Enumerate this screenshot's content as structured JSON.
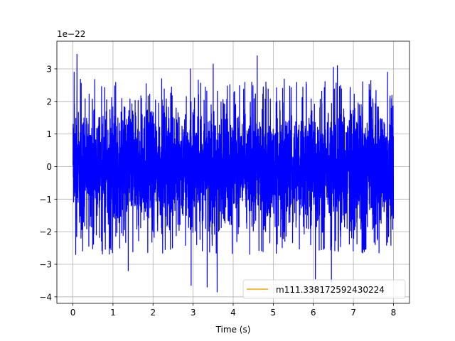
{
  "chart_data": {
    "type": "line",
    "title": "",
    "xlabel": "Time (s)",
    "ylabel": "",
    "y_offset_label": "1e−22",
    "xlim": [
      -0.4,
      8.4
    ],
    "ylim": [
      -4.2,
      3.85
    ],
    "x_ticks": [
      0,
      1,
      2,
      3,
      4,
      5,
      6,
      7,
      8
    ],
    "x_tick_labels": [
      "0",
      "1",
      "2",
      "3",
      "4",
      "5",
      "6",
      "7",
      "8"
    ],
    "y_ticks": [
      3,
      2,
      1,
      0,
      -1,
      -2,
      -3,
      -4
    ],
    "y_tick_labels": [
      "3",
      "2",
      "1",
      "0",
      "−1",
      "−2",
      "−3",
      "−4"
    ],
    "grid": true,
    "legend_position": "lower-right",
    "series": [
      {
        "name": "",
        "color": "#0000ff",
        "x_range": [
          0,
          8
        ],
        "typical_amplitude": 1.6,
        "peaks": [
          {
            "x": 0.03,
            "y": 2.9
          },
          {
            "x": 0.1,
            "y": 3.45
          },
          {
            "x": 0.07,
            "y": -2.7
          },
          {
            "x": 1.38,
            "y": -3.2
          },
          {
            "x": 2.93,
            "y": 3.0
          },
          {
            "x": 2.95,
            "y": -3.65
          },
          {
            "x": 3.35,
            "y": -3.7
          },
          {
            "x": 3.5,
            "y": 3.15
          },
          {
            "x": 3.6,
            "y": -3.85
          },
          {
            "x": 4.6,
            "y": 3.4
          },
          {
            "x": 6.05,
            "y": -3.45
          },
          {
            "x": 6.45,
            "y": -3.55
          },
          {
            "x": 6.5,
            "y": 3.05
          },
          {
            "x": 6.6,
            "y": 3.1
          },
          {
            "x": 7.85,
            "y": 2.9
          }
        ]
      },
      {
        "name": "m111.338172592430224",
        "color": "#ffa500",
        "values": []
      }
    ]
  }
}
